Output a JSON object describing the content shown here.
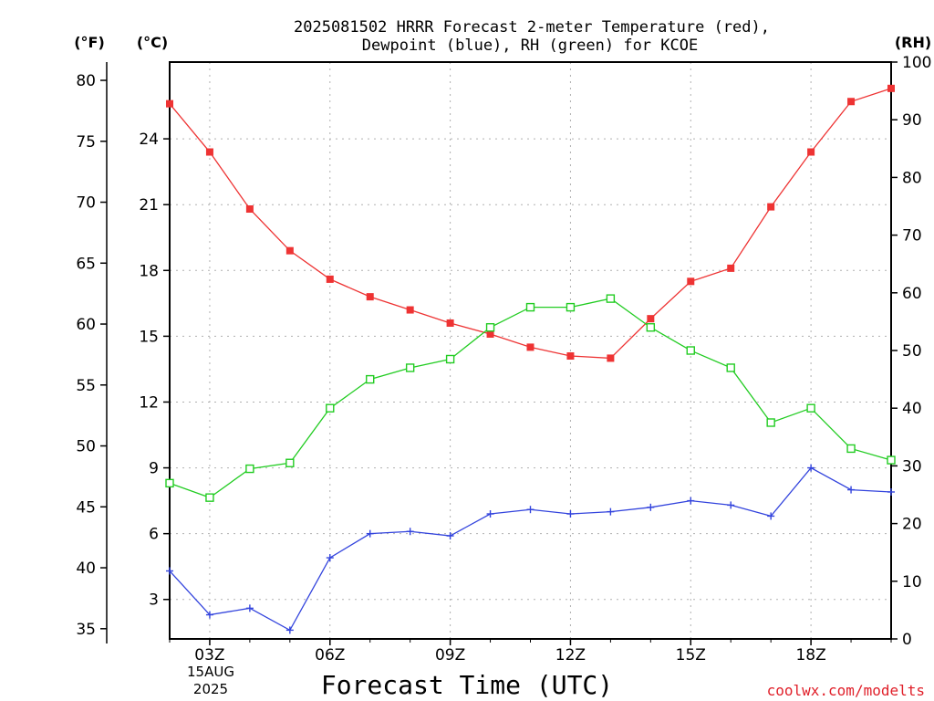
{
  "title_line1": "2025081502 HRRR Forecast 2-meter Temperature (red),",
  "title_line2": "Dewpoint (blue), RH (green) for KCOE",
  "unit_f": "(°F)",
  "unit_c": "(°C)",
  "unit_rh": "(RH)",
  "x_title": "Forecast Time (UTC)",
  "date_label_1": "15AUG",
  "date_label_2": "2025",
  "credit": "coolwx.com/modelts",
  "colors": {
    "temperature": "#ee3333",
    "dewpoint": "#3344dd",
    "rh": "#22cc22",
    "grid": "#b0b0b0"
  },
  "chart_data": {
    "type": "line",
    "title": "2025081502 HRRR Forecast 2-meter Temperature (red), Dewpoint (blue), RH (green) for KCOE",
    "xlabel": "Forecast Time (UTC)",
    "x": [
      2,
      3,
      4,
      5,
      6,
      7,
      8,
      9,
      10,
      11,
      12,
      13,
      14,
      15,
      16,
      17,
      18,
      19,
      20
    ],
    "x_ticks": [
      {
        "x": 3,
        "label": "03Z"
      },
      {
        "x": 6,
        "label": "06Z"
      },
      {
        "x": 9,
        "label": "09Z"
      },
      {
        "x": 12,
        "label": "12Z"
      },
      {
        "x": 15,
        "label": "15Z"
      },
      {
        "x": 18,
        "label": "18Z"
      }
    ],
    "xlim": [
      2,
      20
    ],
    "y_left_celsius": {
      "range": [
        1.2,
        27.5
      ],
      "ticks": [
        "3",
        "6",
        "9",
        "12",
        "15",
        "18",
        "21",
        "24"
      ]
    },
    "y_left_fahrenheit": {
      "range": [
        34.16,
        81.5
      ],
      "ticks": [
        "35",
        "40",
        "45",
        "50",
        "55",
        "60",
        "65",
        "70",
        "75",
        "80"
      ]
    },
    "y_right_rh": {
      "range": [
        0,
        100
      ],
      "ticks": [
        "0",
        "10",
        "20",
        "30",
        "40",
        "50",
        "60",
        "70",
        "80",
        "90",
        "100"
      ]
    },
    "grid": true,
    "series": [
      {
        "name": "Temperature",
        "axis": "celsius",
        "color": "#ee3333",
        "marker": "filled-square",
        "values": [
          25.6,
          23.4,
          20.8,
          18.9,
          17.6,
          16.8,
          16.2,
          15.6,
          15.1,
          14.5,
          14.1,
          14.0,
          15.8,
          17.5,
          18.1,
          20.9,
          23.4,
          25.7,
          26.3
        ]
      },
      {
        "name": "Dewpoint",
        "axis": "celsius",
        "color": "#3344dd",
        "marker": "plus",
        "values": [
          4.3,
          2.3,
          2.6,
          1.6,
          4.9,
          6.0,
          6.1,
          5.9,
          6.9,
          7.1,
          6.9,
          7.0,
          7.2,
          7.5,
          7.3,
          6.8,
          9.0,
          8.0,
          7.9
        ]
      },
      {
        "name": "RH",
        "axis": "rh",
        "color": "#22cc22",
        "marker": "open-square",
        "values": [
          27,
          24.5,
          29.5,
          30.5,
          40,
          45,
          47,
          48.5,
          54,
          57.5,
          57.5,
          59,
          54,
          50,
          47,
          37.5,
          40,
          33,
          31
        ]
      }
    ]
  }
}
